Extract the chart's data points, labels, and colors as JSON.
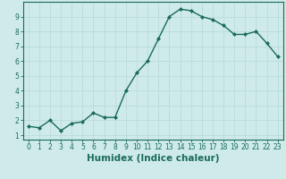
{
  "x": [
    0,
    1,
    2,
    3,
    4,
    5,
    6,
    7,
    8,
    9,
    10,
    11,
    12,
    13,
    14,
    15,
    16,
    17,
    18,
    19,
    20,
    21,
    22,
    23
  ],
  "y": [
    1.6,
    1.5,
    2.0,
    1.3,
    1.8,
    1.9,
    2.5,
    2.2,
    2.2,
    4.0,
    5.2,
    6.0,
    7.5,
    9.0,
    9.5,
    9.4,
    9.0,
    8.8,
    8.4,
    7.8,
    7.8,
    8.0,
    7.2,
    6.3
  ],
  "line_color": "#1a6b5a",
  "marker": "D",
  "marker_size": 2.0,
  "bg_color": "#ceeaea",
  "grid_color": "#b8d8d8",
  "xlabel": "Humidex (Indice chaleur)",
  "xlim": [
    -0.5,
    23.5
  ],
  "ylim": [
    0.7,
    10.0
  ],
  "yticks": [
    1,
    2,
    3,
    4,
    5,
    6,
    7,
    8,
    9
  ],
  "xticks": [
    0,
    1,
    2,
    3,
    4,
    5,
    6,
    7,
    8,
    9,
    10,
    11,
    12,
    13,
    14,
    15,
    16,
    17,
    18,
    19,
    20,
    21,
    22,
    23
  ],
  "tick_fontsize": 5.5,
  "xlabel_fontsize": 7.5,
  "line_width": 1.0
}
